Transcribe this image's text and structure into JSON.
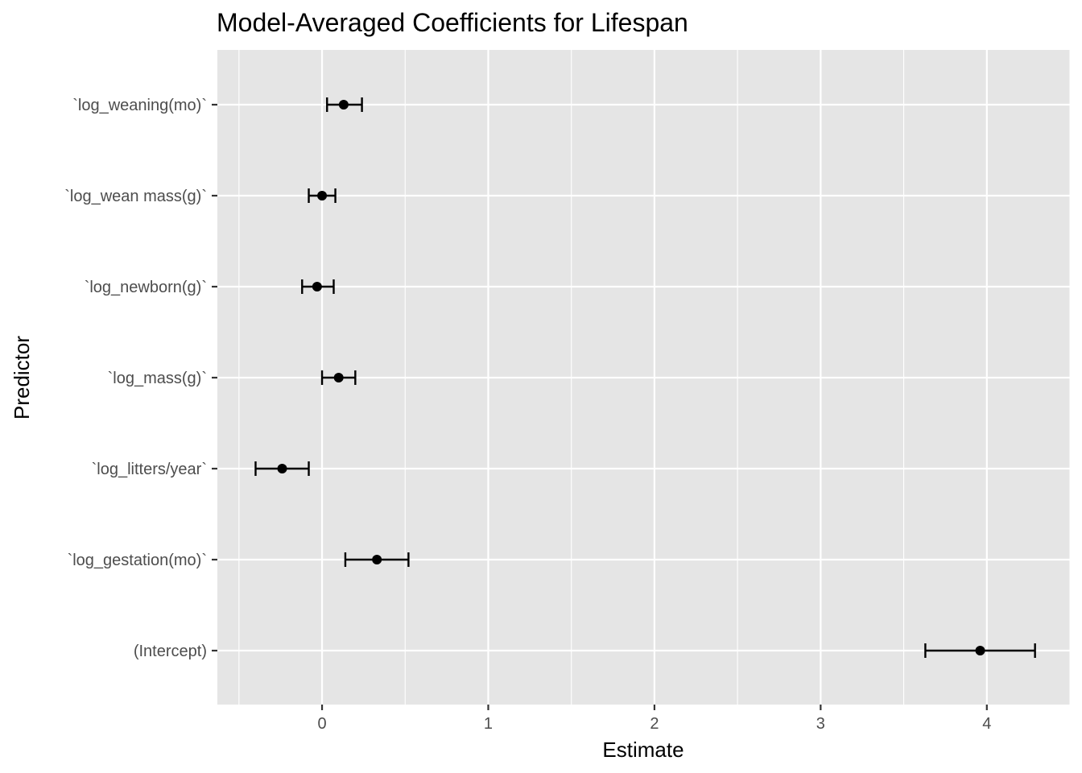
{
  "chart_data": {
    "type": "scatter",
    "title": "Model-Averaged Coefficients for Lifespan",
    "xlabel": "Estimate",
    "ylabel": "Predictor",
    "xlim": [
      -0.63,
      4.5
    ],
    "x_ticks": [
      0,
      1,
      2,
      3,
      4
    ],
    "x_tick_labels": [
      "0",
      "1",
      "2",
      "3",
      "4"
    ],
    "grid": true,
    "legend": "none",
    "categories": [
      "`log_weaning(mo)`",
      "`log_wean mass(g)`",
      "`log_newborn(g)`",
      "`log_mass(g)`",
      "`log_litters/year`",
      "`log_gestation(mo)`",
      "(Intercept)"
    ],
    "series": [
      {
        "estimates": [
          0.13,
          0.0,
          -0.03,
          0.1,
          -0.24,
          0.33,
          3.96
        ],
        "lower": [
          0.03,
          -0.08,
          -0.12,
          0.0,
          -0.4,
          0.14,
          3.63
        ],
        "upper": [
          0.24,
          0.08,
          0.07,
          0.2,
          -0.08,
          0.52,
          4.29
        ]
      }
    ],
    "colors": {
      "panel_background": "#e5e5e5",
      "grid": "#ffffff",
      "marks": "#000000",
      "tick_text": "#4d4d4d"
    }
  }
}
